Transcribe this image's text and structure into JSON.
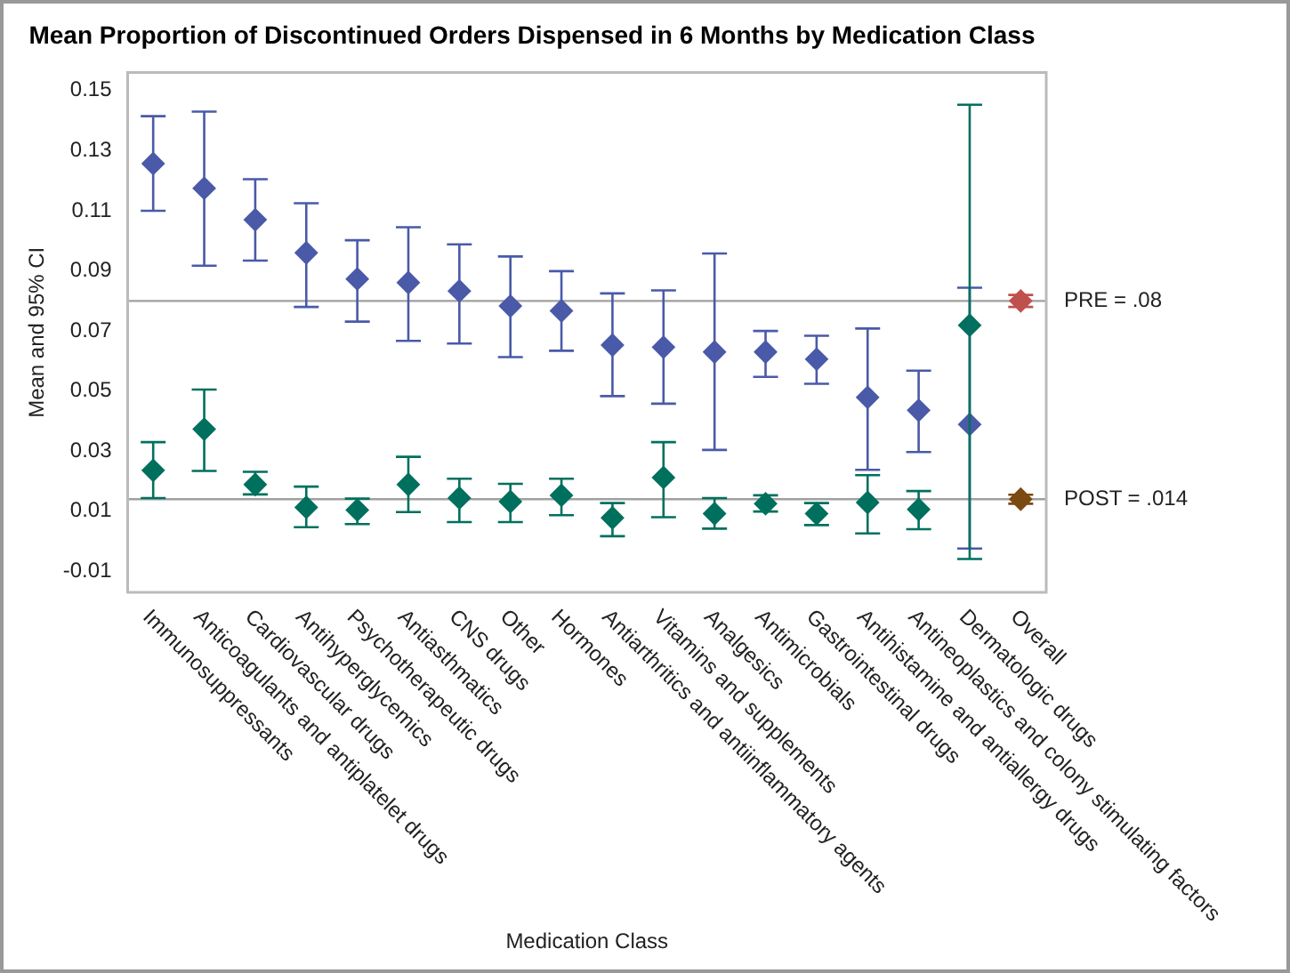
{
  "chart_data": {
    "type": "scatter",
    "title": "Mean Proportion of Discontinued Orders Dispensed in 6 Months by Medication Class",
    "xlabel": "Medication Class",
    "ylabel": "Mean and 95% CI",
    "categories": [
      "Immunosuppressants",
      "Anticoagulants and antiplatelet drugs",
      "Cardiovascular drugs",
      "Antihyperglycemics",
      "Psychotherapeutic drugs",
      "Antiasthmatics",
      "CNS drugs",
      "Other",
      "Hormones",
      "Antiarthritics and antiinflammatory agents",
      "Vitamins and supplements",
      "Analgesics",
      "Antimicrobials",
      "Gastrointestinal drugs",
      "Antihistamine and antiallergy drugs",
      "Antineoplastics and colony stimulating factors",
      "Dermatologic drugs",
      "Overall"
    ],
    "series": [
      {
        "color": "#4a5aa8",
        "values": [
          0.1257,
          0.1175,
          0.107,
          0.096,
          0.0873,
          0.0861,
          0.0833,
          0.0783,
          0.0767,
          0.0653,
          0.0646,
          0.063,
          0.063,
          0.0606,
          0.0479,
          0.0436,
          0.0389,
          null
        ],
        "errors": [
          [
            0.11,
            0.1415
          ],
          [
            0.0917,
            0.143
          ],
          [
            0.0934,
            0.1205
          ],
          [
            0.078,
            0.1125
          ],
          [
            0.0731,
            0.1002
          ],
          [
            0.0667,
            0.1045
          ],
          [
            0.0658,
            0.0988
          ],
          [
            0.0613,
            0.0948
          ],
          [
            0.0634,
            0.0899
          ],
          [
            0.0483,
            0.0825
          ],
          [
            0.0458,
            0.0835
          ],
          [
            0.0304,
            0.0958
          ],
          [
            0.0547,
            0.07
          ],
          [
            0.0524,
            0.0684
          ],
          [
            0.0238,
            0.0708
          ],
          [
            0.0297,
            0.0568
          ],
          [
            -0.0024,
            0.0844
          ],
          null
        ]
      },
      {
        "color": "#00705e",
        "values": [
          0.0236,
          0.0373,
          0.0189,
          0.0113,
          0.0104,
          0.0189,
          0.0144,
          0.0132,
          0.0153,
          0.0078,
          0.0212,
          0.0092,
          0.0125,
          0.0092,
          0.0129,
          0.0106,
          0.0719,
          null
        ],
        "errors": [
          [
            0.0144,
            0.033
          ],
          [
            0.0234,
            0.0505
          ],
          [
            0.0156,
            0.0231
          ],
          [
            0.0047,
            0.0182
          ],
          [
            0.0057,
            0.0142
          ],
          [
            0.0097,
            0.0281
          ],
          [
            0.0064,
            0.0208
          ],
          [
            0.0064,
            0.0191
          ],
          [
            0.0087,
            0.0208
          ],
          [
            0.0017,
            0.0127
          ],
          [
            0.008,
            0.033
          ],
          [
            0.0042,
            0.0144
          ],
          [
            0.0099,
            0.0153
          ],
          [
            0.0054,
            0.0127
          ],
          [
            0.0026,
            0.022
          ],
          [
            0.004,
            0.0167
          ],
          [
            -0.0059,
            0.1453
          ],
          null
        ]
      },
      {
        "color": "#c0504d",
        "values": [
          null,
          null,
          null,
          null,
          null,
          null,
          null,
          null,
          null,
          null,
          null,
          null,
          null,
          null,
          null,
          null,
          null,
          0.08
        ],
        "errors": [
          null,
          null,
          null,
          null,
          null,
          null,
          null,
          null,
          null,
          null,
          null,
          null,
          null,
          null,
          null,
          null,
          null,
          [
            0.078,
            0.082
          ]
        ]
      },
      {
        "color": "#7b4a12",
        "values": [
          null,
          null,
          null,
          null,
          null,
          null,
          null,
          null,
          null,
          null,
          null,
          null,
          null,
          null,
          null,
          null,
          null,
          0.014
        ],
        "errors": [
          null,
          null,
          null,
          null,
          null,
          null,
          null,
          null,
          null,
          null,
          null,
          null,
          null,
          null,
          null,
          null,
          null,
          [
            0.0125,
            0.0155
          ]
        ]
      }
    ],
    "ylim": [
      -0.017,
      0.156
    ],
    "yticks": [
      {
        "value": 0.15,
        "label": "0.15"
      },
      {
        "value": 0.13,
        "label": "0.13"
      },
      {
        "value": 0.11,
        "label": "0.11"
      },
      {
        "value": 0.09,
        "label": "0.09"
      },
      {
        "value": 0.07,
        "label": "0.07"
      },
      {
        "value": 0.05,
        "label": "0.05"
      },
      {
        "value": 0.03,
        "label": "0.03"
      },
      {
        "value": 0.01,
        "label": "0.01"
      },
      {
        "value": -0.01,
        "label": "-0.01"
      }
    ],
    "ref_lines": [
      {
        "axis": "y",
        "value": 0.08,
        "label": "PRE = .08",
        "color": "#a0a0a0"
      },
      {
        "axis": "y",
        "value": 0.014,
        "label": "POST = .014",
        "color": "#a0a0a0"
      }
    ],
    "marker": "diamond",
    "grid": false,
    "legend": false
  }
}
